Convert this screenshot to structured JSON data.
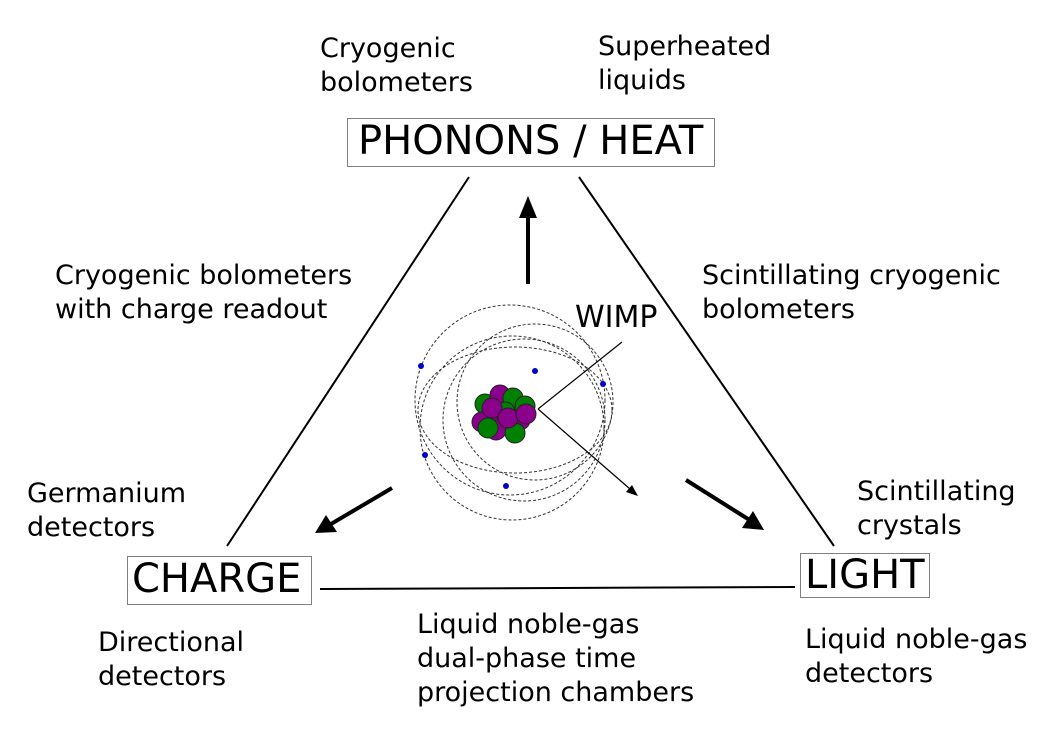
{
  "vertices": {
    "top": "PHONONS / HEAT",
    "left": "CHARGE",
    "right": "LIGHT"
  },
  "center_label": "WIMP",
  "labels": {
    "cryogenic_bolometers": [
      "Cryogenic",
      "bolometers"
    ],
    "superheated_liquids": [
      "Superheated",
      "liquids"
    ],
    "bolometers_charge_readout": [
      "Cryogenic bolometers",
      "with charge readout"
    ],
    "scintillating_cryogenic": [
      "Scintillating cryogenic",
      "bolometers"
    ],
    "germanium": [
      "Germanium",
      "detectors"
    ],
    "scintillating_crystals": [
      "Scintillating",
      "crystals"
    ],
    "directional": [
      "Directional",
      "detectors"
    ],
    "liquid_noble_tpc": [
      "Liquid noble-gas",
      "dual-phase time",
      "projection chambers"
    ],
    "liquid_noble_detectors": [
      "Liquid noble-gas",
      "detectors"
    ]
  },
  "colors": {
    "proton": "#8b008b",
    "neutron": "#008000",
    "electron": "#0000cc",
    "line": "#000000",
    "box_border": "#808080"
  }
}
